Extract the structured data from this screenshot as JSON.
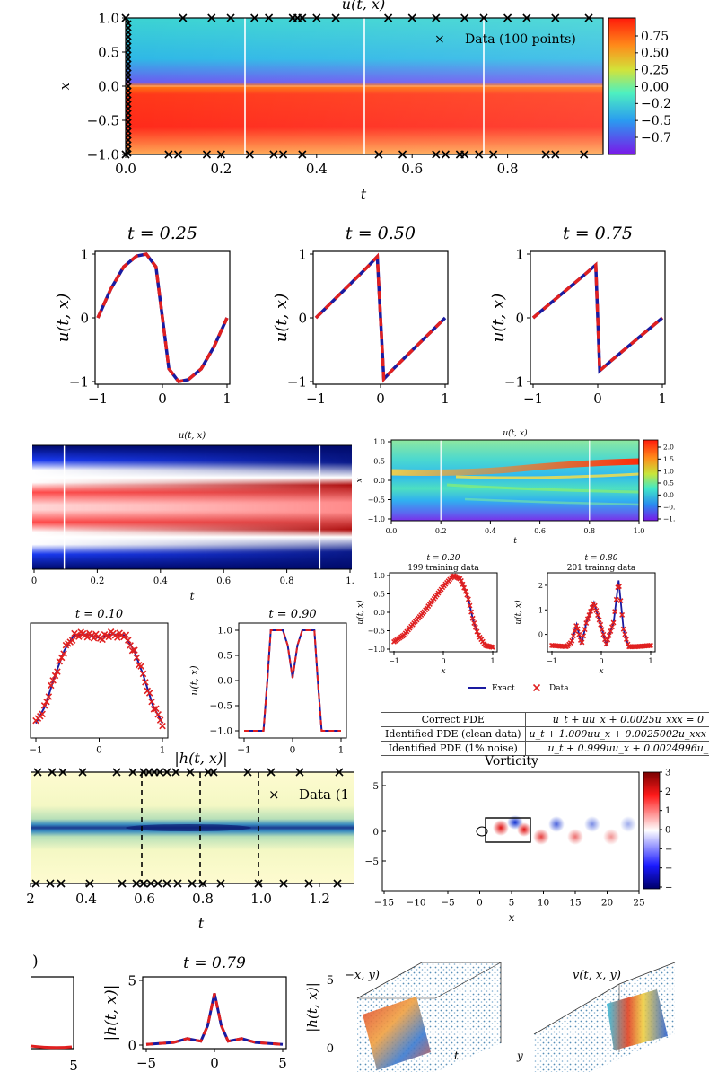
{
  "chart_data": [
    {
      "id": "burgers_heatmap",
      "type": "heatmap",
      "title": "u(t, x)",
      "xlabel": "t",
      "ylabel": "x",
      "xlim": [
        0,
        1
      ],
      "ylim": [
        -1,
        1
      ],
      "xticks": [
        "0.0",
        "0.2",
        "0.4",
        "0.6",
        "0.8"
      ],
      "yticks": [
        "1.0",
        "0.5",
        "0.0",
        "−0.5",
        "−1.0"
      ],
      "colorbar_ticks": [
        "0.75",
        "0.50",
        "0.25",
        "0.00",
        "−0.2",
        "−0.5",
        "−0.7"
      ],
      "colormap": "rainbow",
      "legend": "Data (100 points)",
      "legend_position": "top-right",
      "snapshot_lines_t": [
        0.25,
        0.5,
        0.75
      ],
      "data_points_top_t": [
        0.0,
        0.12,
        0.18,
        0.22,
        0.27,
        0.3,
        0.35,
        0.36,
        0.37,
        0.4,
        0.44,
        0.55,
        0.6,
        0.65,
        0.71,
        0.75,
        0.8,
        0.84,
        0.9,
        0.97
      ],
      "data_points_bottom_t": [
        0.0,
        0.09,
        0.11,
        0.17,
        0.2,
        0.26,
        0.31,
        0.33,
        0.37,
        0.53,
        0.58,
        0.65,
        0.67,
        0.7,
        0.71,
        0.74,
        0.77,
        0.88,
        0.9,
        0.96
      ]
    },
    {
      "id": "burgers_slices",
      "type": "line",
      "ylabel": "u(t, x)",
      "xlim": [
        -1,
        1
      ],
      "ylim": [
        -1,
        1
      ],
      "xticks": [
        "−1",
        "0",
        "1"
      ],
      "yticks": [
        "1",
        "0",
        "−1"
      ],
      "subplots": [
        {
          "title": "t = 0.25",
          "x": [
            -1,
            -0.8,
            -0.6,
            -0.4,
            -0.25,
            -0.1,
            0,
            0.1,
            0.25,
            0.4,
            0.6,
            0.8,
            1
          ],
          "y": [
            0,
            0.45,
            0.8,
            0.97,
            1.0,
            0.8,
            0,
            -0.8,
            -1.0,
            -0.97,
            -0.8,
            -0.45,
            0
          ]
        },
        {
          "title": "t = 0.50",
          "x": [
            -1,
            -0.8,
            -0.6,
            -0.4,
            -0.2,
            -0.05,
            0,
            0.05,
            0.2,
            0.4,
            0.6,
            0.8,
            1
          ],
          "y": [
            0,
            0.2,
            0.4,
            0.6,
            0.8,
            0.96,
            0,
            -0.96,
            -0.8,
            -0.6,
            -0.4,
            -0.2,
            0
          ]
        },
        {
          "title": "t = 0.75",
          "x": [
            -1,
            -0.8,
            -0.6,
            -0.4,
            -0.2,
            -0.03,
            0,
            0.03,
            0.2,
            0.4,
            0.6,
            0.8,
            1
          ],
          "y": [
            0,
            0.17,
            0.34,
            0.51,
            0.68,
            0.83,
            0,
            -0.83,
            -0.68,
            -0.51,
            -0.34,
            -0.17,
            0
          ]
        }
      ]
    },
    {
      "id": "allen_cahn_heatmap",
      "type": "heatmap",
      "title": "u(t, x)",
      "xlabel": "t",
      "xticks": [
        "0",
        "0.2",
        "0.4",
        "0.6",
        "0.8",
        "1."
      ],
      "colormap": "seismic",
      "snapshot_lines_t": [
        0.1,
        0.9
      ]
    },
    {
      "id": "kdv_heatmap",
      "type": "heatmap",
      "title": "u(t, x)",
      "xlabel": "t",
      "ylabel": "x",
      "xticks": [
        "0.0",
        "0.2",
        "0.4",
        "0.6",
        "0.8",
        "1.0"
      ],
      "yticks": [
        "1.0",
        "0.5",
        "0.0",
        "−0.5",
        "−1.0"
      ],
      "colorbar_ticks": [
        "2.0",
        "1.5",
        "1.0",
        "0.5",
        "0.0",
        "−0.5",
        "−1.0"
      ],
      "colorbar_ticks_shown": [
        "2.0",
        "1.5",
        "1.0",
        "0.5",
        "0.0",
        "−0.",
        "−1."
      ],
      "colormap": "rainbow",
      "snapshot_lines_t": [
        0.2,
        0.8
      ]
    },
    {
      "id": "allen_cahn_slices",
      "type": "line",
      "ylabel": "u(t, x)",
      "subplots": [
        {
          "title": "t = 0.10",
          "xticks": [
            "−1",
            "0",
            "1"
          ],
          "yticks": [],
          "x": [
            -1,
            -0.85,
            -0.7,
            -0.55,
            -0.4,
            -0.2,
            0,
            0.2,
            0.4,
            0.55,
            0.7,
            0.85,
            1
          ],
          "y": [
            -0.85,
            -0.5,
            0.1,
            0.6,
            0.9,
            0.92,
            0.85,
            0.92,
            0.9,
            0.6,
            0.1,
            -0.5,
            -0.85
          ]
        },
        {
          "title": "t = 0.90",
          "xticks": [
            "−1",
            "0",
            "1"
          ],
          "yticks": [
            "1.0",
            "0.5",
            "0.0",
            "−0.5",
            "−1.0"
          ],
          "x": [
            -1,
            -0.6,
            -0.52,
            -0.45,
            -0.2,
            -0.1,
            0,
            0.1,
            0.2,
            0.45,
            0.52,
            0.6,
            1
          ],
          "y": [
            -1,
            -1,
            0,
            1,
            1,
            0.7,
            0.05,
            0.7,
            1,
            1,
            0,
            -1,
            -1
          ]
        }
      ]
    },
    {
      "id": "kdv_slices",
      "type": "line",
      "xlabel": "x",
      "ylabel": "u(t, x)",
      "legend": [
        "Exact",
        "Data"
      ],
      "legend_position": "bottom",
      "subplots": [
        {
          "title": "t = 0.20",
          "subtitle": "199 training data",
          "xticks": [
            "−1",
            "0",
            "1"
          ],
          "yticks": [
            "1.0",
            "0.5",
            "0.0",
            "−0.5",
            "−1.0"
          ],
          "x": [
            -1,
            -0.8,
            -0.6,
            -0.4,
            -0.2,
            0,
            0.2,
            0.35,
            0.5,
            0.6,
            0.7,
            0.85,
            1
          ],
          "y": [
            -0.8,
            -0.62,
            -0.3,
            0.0,
            0.35,
            0.7,
            1.0,
            0.9,
            0.4,
            -0.2,
            -0.6,
            -0.9,
            -0.95
          ]
        },
        {
          "title": "t = 0.80",
          "subtitle": "201 trainng data",
          "xticks": [
            "−1",
            "0",
            "1"
          ],
          "yticks": [
            "2",
            "1",
            "0"
          ],
          "x": [
            -1,
            -0.7,
            -0.6,
            -0.5,
            -0.4,
            -0.3,
            -0.15,
            0,
            0.1,
            0.25,
            0.35,
            0.45,
            0.55,
            0.7,
            1
          ],
          "y": [
            -0.45,
            -0.5,
            -0.3,
            0.4,
            -0.4,
            0.5,
            1.3,
            0.3,
            -0.4,
            0.5,
            2.2,
            0.2,
            -0.5,
            -0.5,
            -0.45
          ]
        }
      ]
    },
    {
      "id": "pde_table",
      "type": "table",
      "rows": [
        [
          "Correct PDE",
          "u_t + uu_x + 0.0025u_xxx = 0"
        ],
        [
          "Identified PDE (clean data)",
          "u_t + 1.000uu_x + 0.0025002u_xxx = 0"
        ],
        [
          "Identified PDE (1% noise)",
          "u_t + 0.999uu_x + 0.0024996u_"
        ]
      ]
    },
    {
      "id": "schrodinger_heatmap",
      "type": "heatmap",
      "title": "|h(t, x)|",
      "xlabel": "t",
      "xticks": [
        "2",
        "0.4",
        "0.6",
        "0.8",
        "1.0",
        "1.2"
      ],
      "legend": "Data (1",
      "colormap": "YlGnBu",
      "snapshot_lines": "dashed"
    },
    {
      "id": "vorticity",
      "type": "heatmap",
      "title": "Vorticity",
      "xlabel": "x",
      "xticks": [
        "−15",
        "−10",
        "−5",
        "0",
        "5",
        "10",
        "15",
        "20",
        "25"
      ],
      "yticks": [
        "5",
        "0",
        "−5"
      ],
      "colorbar_ticks": [
        "3",
        "2",
        "1",
        "0",
        "−1",
        "−2",
        "−3"
      ],
      "colorbar_ticks_shown": [
        "3",
        "2",
        "1",
        "0",
        "−",
        "−",
        "−"
      ],
      "colormap": "seismic"
    },
    {
      "id": "schrodinger_slices",
      "type": "line",
      "ylabel": "|h(t, x)|",
      "subplots": [
        {
          "title": ")",
          "xticks": [
            "5"
          ],
          "x": [],
          "y": []
        },
        {
          "title": "t = 0.79",
          "xticks": [
            "−5",
            "0",
            "5"
          ],
          "yticks": [
            "5",
            "0"
          ],
          "x": [
            -5,
            -3,
            -2,
            -1,
            -0.5,
            0,
            0.5,
            1,
            2,
            3,
            5
          ],
          "y": [
            0.05,
            0.2,
            0.5,
            0.3,
            1.5,
            4.0,
            1.5,
            0.3,
            0.5,
            0.2,
            0.05
          ]
        }
      ]
    },
    {
      "id": "ns_3d_u",
      "type": "scatter",
      "title": "−x, y)",
      "ylabel": "|h(t, x)|",
      "yticks": [
        "5",
        "0"
      ],
      "axis_labels": [
        "t"
      ]
    },
    {
      "id": "ns_3d_v",
      "type": "scatter",
      "title": "v(t, x, y)",
      "axis_labels": [
        "y"
      ]
    }
  ]
}
